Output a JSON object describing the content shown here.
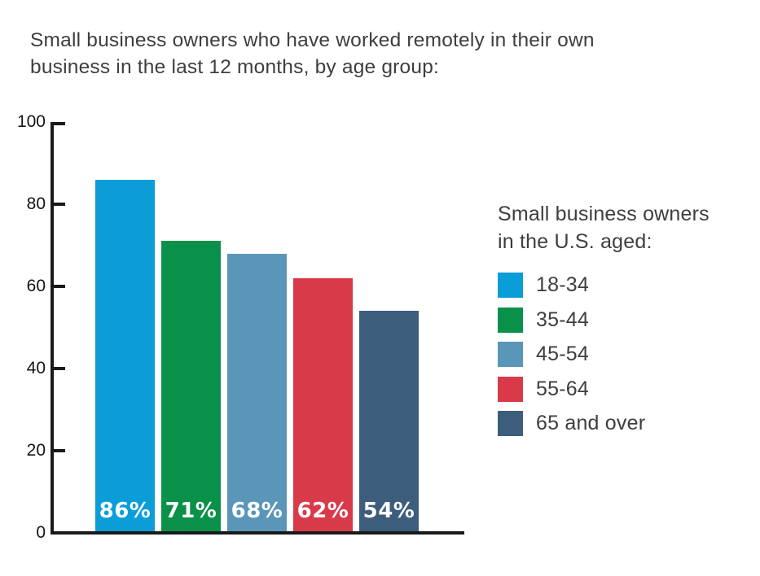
{
  "title": "Small business owners who have worked remotely in their own business in the last 12 months, by age group:",
  "chart_data": {
    "type": "bar",
    "categories": [
      "18-34",
      "35-44",
      "45-54",
      "55-64",
      "65 and over"
    ],
    "values": [
      86,
      71,
      68,
      62,
      54
    ],
    "value_labels": [
      "86%",
      "71%",
      "68%",
      "62%",
      "54%"
    ],
    "bar_colors": [
      "#0a9dd8",
      "#0a9149",
      "#5a96b8",
      "#d93a4a",
      "#3d5d7d"
    ],
    "title": "Small business owners who have worked remotely in their own business in the last 12 months, by age group:",
    "xlabel": "",
    "ylabel": "",
    "ylim": [
      0,
      100
    ],
    "yticks": [
      0,
      20,
      40,
      60,
      80,
      100
    ],
    "grid": false,
    "legend_position": "right",
    "value_label_color": "#ffffff",
    "axis_color": "#1a1a1a"
  },
  "legend": {
    "title": "Small business owners in the U.S. aged:",
    "items": [
      {
        "label": "18-34",
        "color": "#0a9dd8"
      },
      {
        "label": "35-44",
        "color": "#0a9149"
      },
      {
        "label": "45-54",
        "color": "#5a96b8"
      },
      {
        "label": "55-64",
        "color": "#d93a4a"
      },
      {
        "label": "65 and over",
        "color": "#3d5d7d"
      }
    ]
  }
}
